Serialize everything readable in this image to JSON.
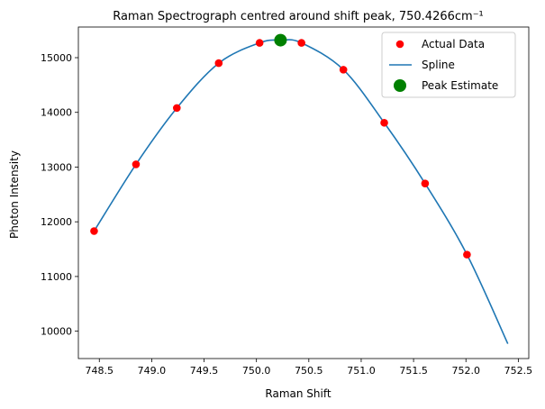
{
  "chart_data": {
    "type": "scatter",
    "title": "Raman Spectrograph centred around shift peak, 750.4266cm⁻¹",
    "xlabel": "Raman Shift",
    "ylabel": "Photon Intensity",
    "xlim": [
      748.3,
      752.6
    ],
    "ylim": [
      9500,
      15560
    ],
    "xticks": [
      748.5,
      749.0,
      749.5,
      750.0,
      750.5,
      751.0,
      751.5,
      752.0,
      752.5
    ],
    "xtick_labels": [
      "748.5",
      "749.0",
      "749.5",
      "750.0",
      "750.5",
      "751.0",
      "751.5",
      "752.0",
      "752.5"
    ],
    "yticks": [
      10000,
      11000,
      12000,
      13000,
      14000,
      15000
    ],
    "ytick_labels": [
      "10000",
      "11000",
      "12000",
      "13000",
      "14000",
      "15000"
    ],
    "grid": false,
    "legend_position": "top-right",
    "series": [
      {
        "name": "Actual Data",
        "kind": "scatter",
        "color": "#ff0000",
        "x": [
          748.45,
          748.85,
          749.24,
          749.64,
          750.03,
          750.43,
          750.83,
          751.22,
          751.61,
          752.01
        ],
        "y": [
          11830,
          13050,
          14080,
          14900,
          15270,
          15270,
          14780,
          13810,
          12700,
          11400
        ]
      },
      {
        "name": "Spline",
        "kind": "line",
        "color": "#1f77b4",
        "x": [
          748.45,
          748.85,
          749.24,
          749.64,
          750.03,
          750.23,
          750.43,
          750.83,
          751.22,
          751.61,
          752.01,
          752.4
        ],
        "y": [
          11830,
          13050,
          14080,
          14900,
          15270,
          15320,
          15270,
          14780,
          13810,
          12700,
          11400,
          9770
        ]
      },
      {
        "name": "Peak Estimate",
        "kind": "scatter",
        "color": "#008000",
        "x": [
          750.23
        ],
        "y": [
          15320
        ]
      }
    ]
  }
}
